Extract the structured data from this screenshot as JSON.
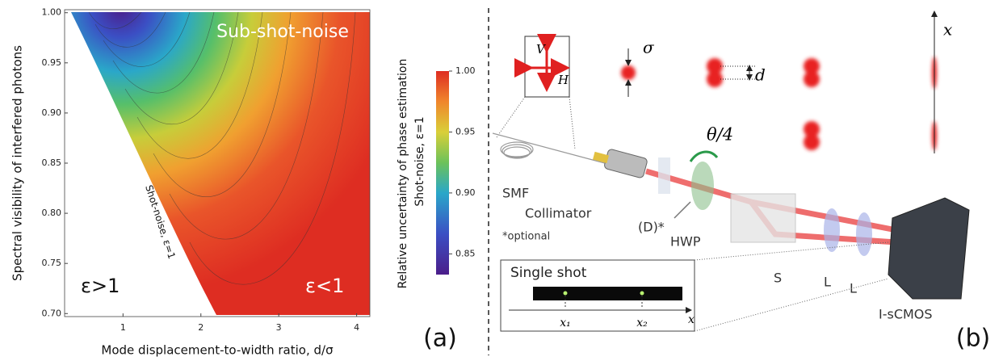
{
  "chart_data": {
    "type": "contour",
    "x_label": "Mode displacement-to-width ratio, d/σ",
    "y_label": "Spectral visibility of interfered photons",
    "xlim": [
      0.25,
      4.17
    ],
    "ylim": [
      0.697,
      1.003
    ],
    "xticks": [
      1,
      2,
      3,
      4
    ],
    "yticks": [
      {
        "value": 1,
        "label": "1.00"
      },
      0.95,
      {
        "value": 0.9,
        "label": "0.90"
      },
      0.85,
      {
        "value": 0.8,
        "label": "0.80"
      },
      0.75,
      {
        "value": 0.7,
        "label": "0.70"
      }
    ],
    "colorbar": {
      "label": "Relative uncertainty of phase estimation",
      "sublabel": "Shot-noise, ε=1",
      "lim": [
        0.833,
        1.0
      ],
      "ticks": [
        {
          "value": 1,
          "label": "1.00"
        },
        0.95,
        {
          "value": 0.9,
          "label": "0.90"
        },
        0.85
      ]
    },
    "annotations": {
      "region": "Sub-shot-noise",
      "boundary": "Shot-noise, ε=1",
      "above": "ε>1",
      "below": "ε<1"
    },
    "panel_label": "(a)"
  },
  "diagram": {
    "panel_label": "(b)",
    "v": "V",
    "h": "H",
    "sigma": "σ",
    "d": "d",
    "x_axis": "x",
    "theta": "θ/4",
    "smf": "SMF",
    "collimator": "Collimator",
    "d_optional": "(D)*",
    "hwp": "HWP",
    "optional": "*optional",
    "splitter": "S",
    "lens1": "L",
    "lens2": "L",
    "camera": "I-sCMOS",
    "inset": {
      "title": "Single shot",
      "x1": "x₁",
      "x2": "x₂",
      "axis": "x"
    }
  }
}
